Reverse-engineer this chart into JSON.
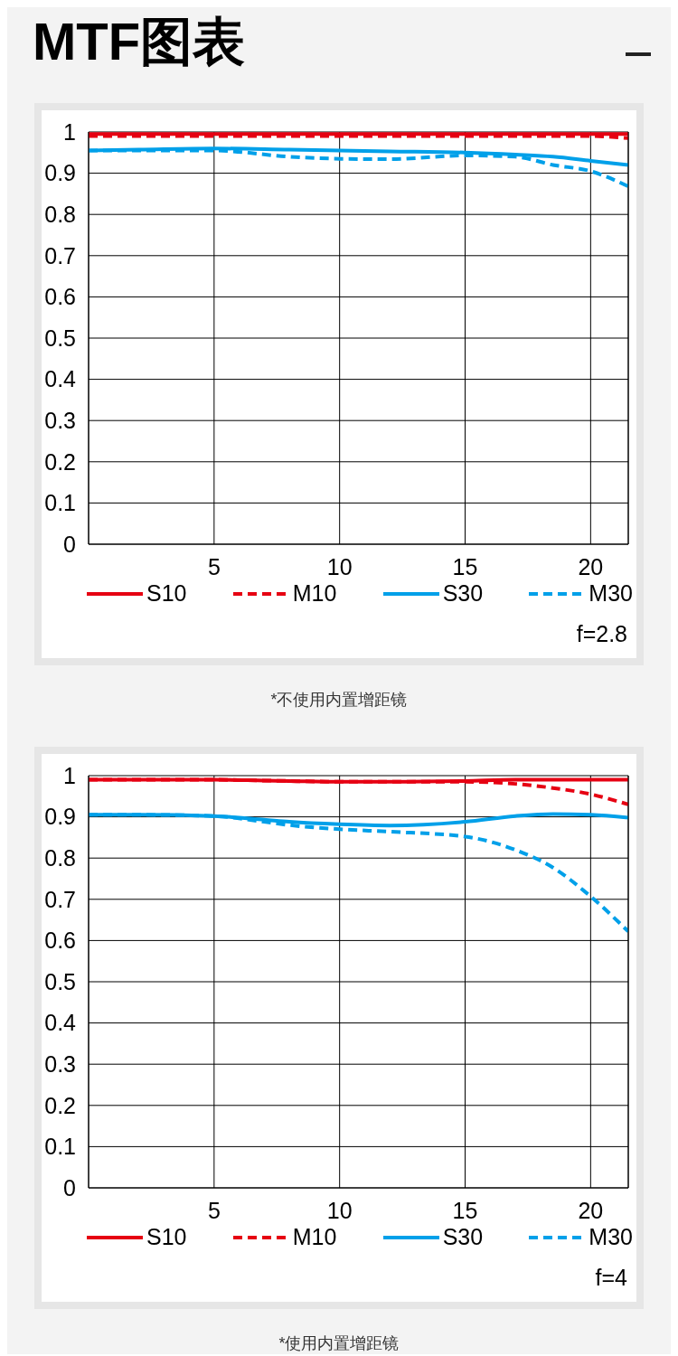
{
  "chart_data": [
    {
      "type": "line",
      "title": "MTF图表",
      "x": [
        0,
        2,
        5,
        8,
        10,
        12,
        15,
        17,
        18.5,
        20,
        21.5
      ],
      "xlim": [
        0,
        21.5
      ],
      "xticks": [
        5,
        10,
        15,
        20
      ],
      "ylim": [
        0,
        1
      ],
      "yticks": [
        0,
        0.1,
        0.2,
        0.3,
        0.4,
        0.5,
        0.6,
        0.7,
        0.8,
        0.9,
        1
      ],
      "grid": true,
      "legend": "bottom",
      "series": [
        {
          "name": "S10",
          "color": "#e60012",
          "line_style": "solid",
          "values": [
            0.995,
            0.995,
            0.995,
            0.995,
            0.995,
            0.995,
            0.995,
            0.995,
            0.995,
            0.995,
            0.995
          ]
        },
        {
          "name": "M10",
          "color": "#e60012",
          "line_style": "dashed",
          "values": [
            0.99,
            0.99,
            0.99,
            0.99,
            0.99,
            0.99,
            0.99,
            0.99,
            0.99,
            0.99,
            0.985
          ]
        },
        {
          "name": "S30",
          "color": "#00a0e9",
          "line_style": "solid",
          "values": [
            0.955,
            0.957,
            0.96,
            0.957,
            0.955,
            0.953,
            0.95,
            0.945,
            0.94,
            0.93,
            0.92
          ]
        },
        {
          "name": "M30",
          "color": "#00a0e9",
          "line_style": "dashed",
          "values": [
            0.955,
            0.955,
            0.955,
            0.94,
            0.935,
            0.934,
            0.943,
            0.94,
            0.92,
            0.905,
            0.868
          ]
        }
      ],
      "annotations": [
        "f=2.8",
        "*不使用内置增距镜"
      ]
    },
    {
      "type": "line",
      "x": [
        0,
        2,
        5,
        7,
        8,
        10,
        12,
        15,
        17,
        18.5,
        20,
        21.5
      ],
      "xlim": [
        0,
        21.5
      ],
      "xticks": [
        5,
        10,
        15,
        20
      ],
      "ylim": [
        0,
        1
      ],
      "yticks": [
        0,
        0.1,
        0.2,
        0.3,
        0.4,
        0.5,
        0.6,
        0.7,
        0.8,
        0.9,
        1
      ],
      "grid": true,
      "legend": "bottom",
      "series": [
        {
          "name": "S10",
          "color": "#e60012",
          "line_style": "solid",
          "values": [
            0.99,
            0.99,
            0.99,
            0.988,
            0.987,
            0.985,
            0.985,
            0.987,
            0.99,
            0.99,
            0.99,
            0.99
          ]
        },
        {
          "name": "M10",
          "color": "#e60012",
          "line_style": "dashed",
          "values": [
            0.99,
            0.99,
            0.99,
            0.988,
            0.987,
            0.985,
            0.985,
            0.985,
            0.98,
            0.97,
            0.955,
            0.93
          ]
        },
        {
          "name": "S30",
          "color": "#00a0e9",
          "line_style": "solid",
          "values": [
            0.905,
            0.905,
            0.902,
            0.893,
            0.888,
            0.882,
            0.879,
            0.888,
            0.902,
            0.907,
            0.905,
            0.898
          ]
        },
        {
          "name": "M30",
          "color": "#00a0e9",
          "line_style": "dashed",
          "values": [
            0.905,
            0.905,
            0.902,
            0.888,
            0.88,
            0.87,
            0.864,
            0.852,
            0.82,
            0.777,
            0.707,
            0.622
          ]
        }
      ],
      "annotations": [
        "f=4",
        "*使用内置增距镜"
      ]
    }
  ]
}
